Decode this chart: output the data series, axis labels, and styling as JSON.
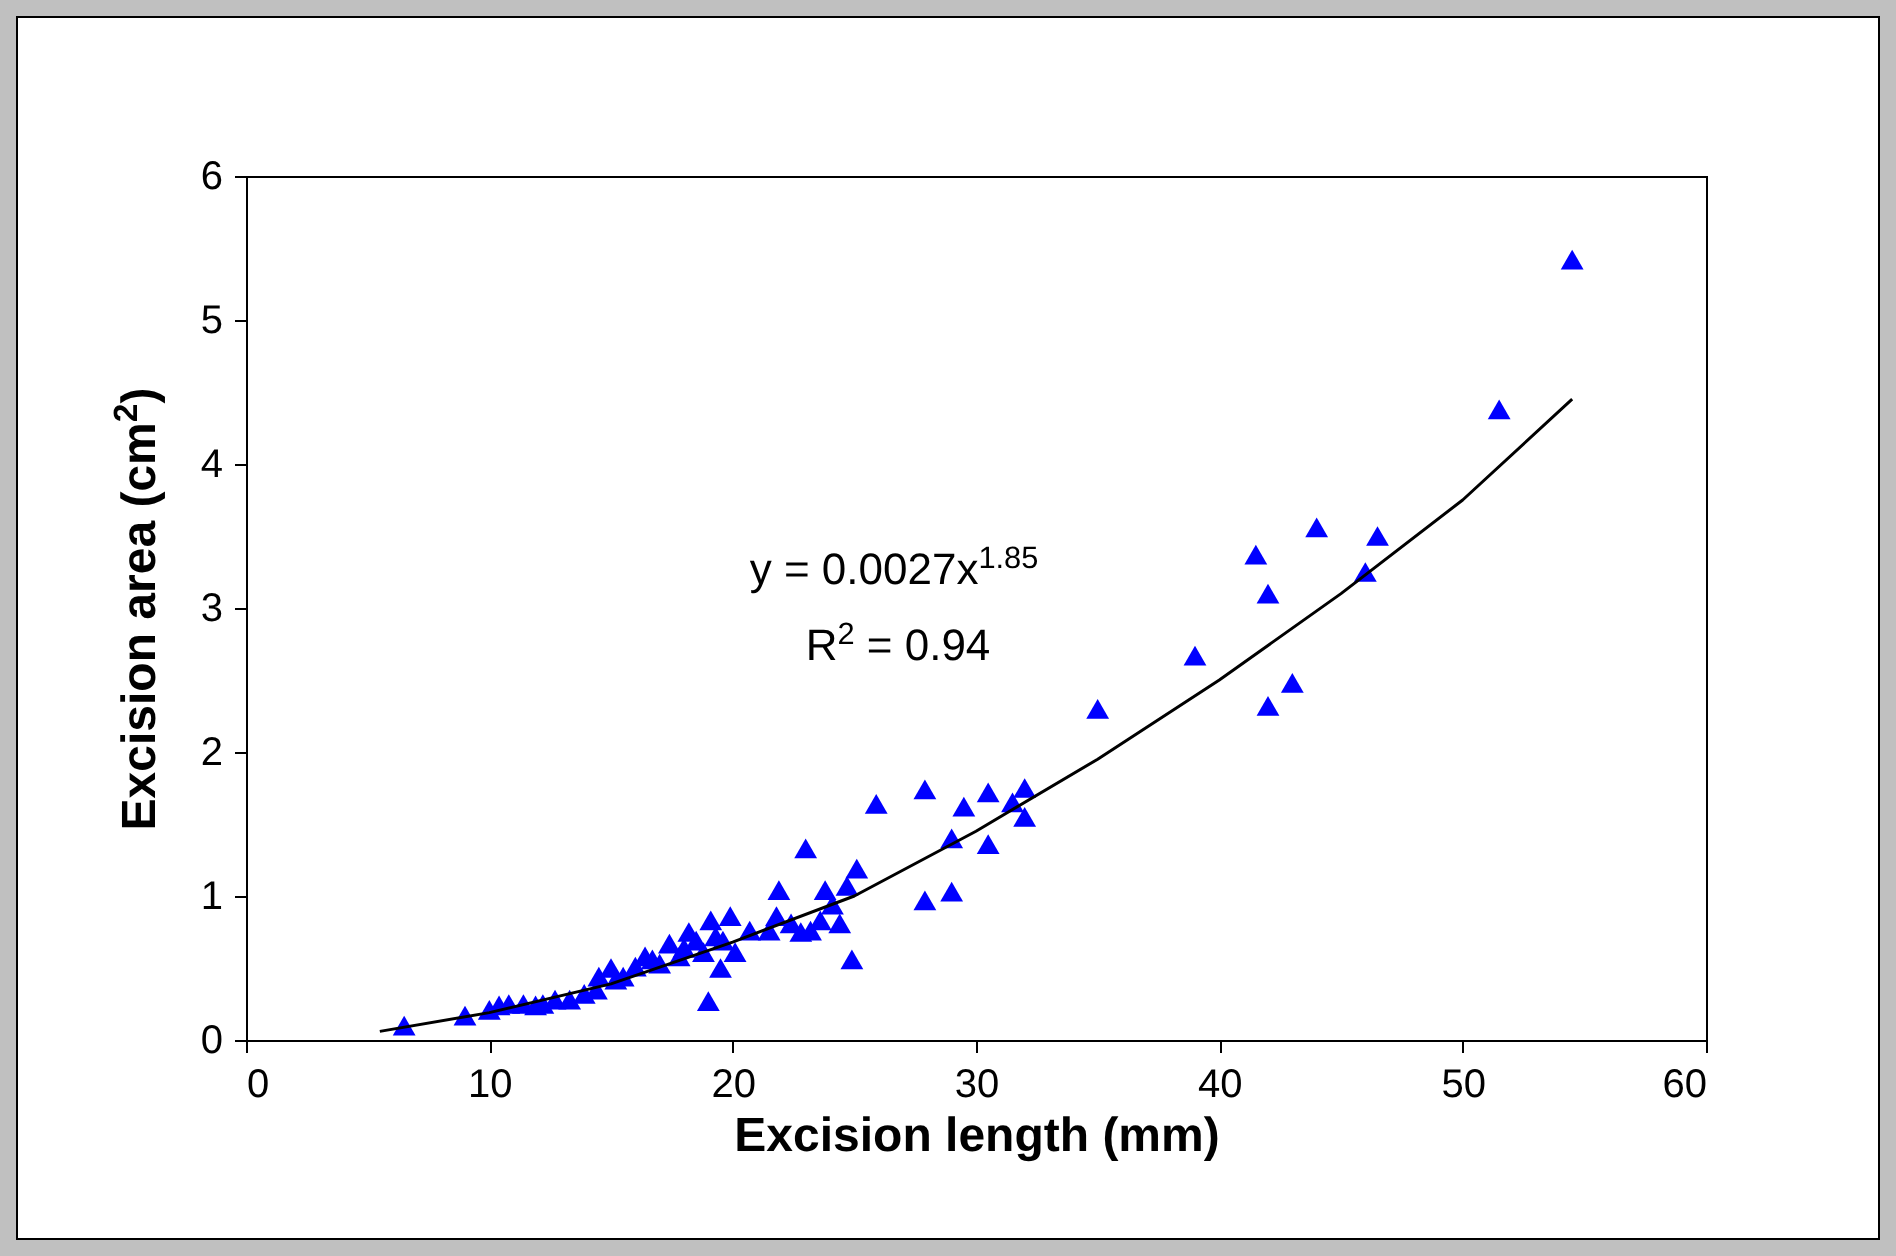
{
  "chart_data": {
    "type": "scatter",
    "xlabel": "Excision length (mm)",
    "ylabel": "Excision area (cm$^{2}$)",
    "xlim": [
      0,
      60
    ],
    "xticks": [
      0,
      10,
      20,
      30,
      40,
      50,
      60
    ],
    "ylim": [
      0,
      6
    ],
    "yticks": [
      0,
      1,
      2,
      3,
      4,
      5,
      6
    ],
    "grid": false,
    "marker": "triangle",
    "annotations": [
      "y = 0.0027x$^{1.85}$",
      "R$^{2}$ = 0.94"
    ],
    "series": [
      {
        "color": "#0000ff",
        "x": [
          6.5,
          9.0,
          10.0,
          10.4,
          10.8,
          11.4,
          11.9,
          12.2,
          12.7,
          13.3,
          13.9,
          14.4,
          14.5,
          15.0,
          15.2,
          15.5,
          16.0,
          16.4,
          16.7,
          17.0,
          17.4,
          17.8,
          18.0,
          18.2,
          18.5,
          18.8,
          19.0,
          19.1,
          19.3,
          19.5,
          19.6,
          19.9,
          20.1,
          20.7,
          21.5,
          21.8,
          21.9,
          22.4,
          22.8,
          23.0,
          23.2,
          23.6,
          23.8,
          24.1,
          24.4,
          24.7,
          24.9,
          25.1,
          25.9,
          27.9,
          27.9,
          29.0,
          29.0,
          29.5,
          30.5,
          30.5,
          31.5,
          32.0,
          32.0,
          35.0,
          39.0,
          41.5,
          42.0,
          42.0,
          43.0,
          44.0,
          46.0,
          46.5,
          51.5,
          54.5
        ],
        "values": [
          0.1,
          0.17,
          0.21,
          0.24,
          0.25,
          0.25,
          0.24,
          0.25,
          0.28,
          0.28,
          0.32,
          0.35,
          0.44,
          0.5,
          0.42,
          0.44,
          0.51,
          0.58,
          0.56,
          0.53,
          0.67,
          0.58,
          0.64,
          0.75,
          0.69,
          0.61,
          0.27,
          0.83,
          0.72,
          0.5,
          0.69,
          0.86,
          0.61,
          0.76,
          0.76,
          0.86,
          1.04,
          0.81,
          0.75,
          1.33,
          0.76,
          0.83,
          1.04,
          0.94,
          0.81,
          1.07,
          0.56,
          1.19,
          1.64,
          1.74,
          0.97,
          1.4,
          1.03,
          1.62,
          1.36,
          1.72,
          1.65,
          1.75,
          1.55,
          2.3,
          2.67,
          3.37,
          3.1,
          2.32,
          2.48,
          3.56,
          3.25,
          3.5,
          4.38,
          5.42
        ]
      },
      {
        "type": "line",
        "color": "#000000",
        "marker": "none",
        "x": [
          5.5,
          10,
          15,
          20,
          25,
          30,
          35,
          40,
          45,
          50,
          54.5
        ],
        "values": [
          0.06,
          0.19,
          0.39,
          0.68,
          1.0,
          1.45,
          1.95,
          2.5,
          3.1,
          3.75,
          4.45
        ]
      }
    ]
  }
}
